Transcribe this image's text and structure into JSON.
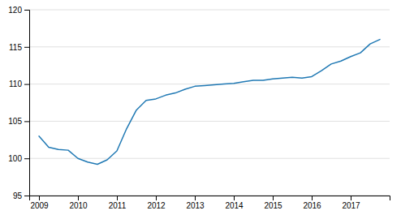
{
  "chart_data": {
    "type": "line",
    "x": [
      2009.0,
      2009.25,
      2009.5,
      2009.75,
      2010.0,
      2010.25,
      2010.5,
      2010.75,
      2011.0,
      2011.25,
      2011.5,
      2011.75,
      2012.0,
      2012.25,
      2012.5,
      2012.75,
      2013.0,
      2013.25,
      2013.5,
      2013.75,
      2014.0,
      2014.25,
      2014.5,
      2014.75,
      2015.0,
      2015.25,
      2015.5,
      2015.75,
      2016.0,
      2016.25,
      2016.5,
      2016.75,
      2017.0,
      2017.25,
      2017.5,
      2017.75
    ],
    "values": [
      103.0,
      101.5,
      101.2,
      101.1,
      100.0,
      99.5,
      99.2,
      99.8,
      101.0,
      104.0,
      106.5,
      107.8,
      108.0,
      108.5,
      108.8,
      109.3,
      109.7,
      109.8,
      109.9,
      110.0,
      110.1,
      110.3,
      110.5,
      110.5,
      110.7,
      110.8,
      110.9,
      110.8,
      111.0,
      111.8,
      112.7,
      113.1,
      113.7,
      114.2,
      115.4,
      116.0
    ],
    "color": "#2079b4",
    "xlim": [
      2008.75,
      2018.0
    ],
    "xticks": [
      2009,
      2010,
      2011,
      2012,
      2013,
      2014,
      2015,
      2016,
      2017
    ],
    "ylim": [
      95,
      120
    ],
    "yticks": [
      95,
      100,
      105,
      110,
      115,
      120
    ],
    "grid": true
  }
}
